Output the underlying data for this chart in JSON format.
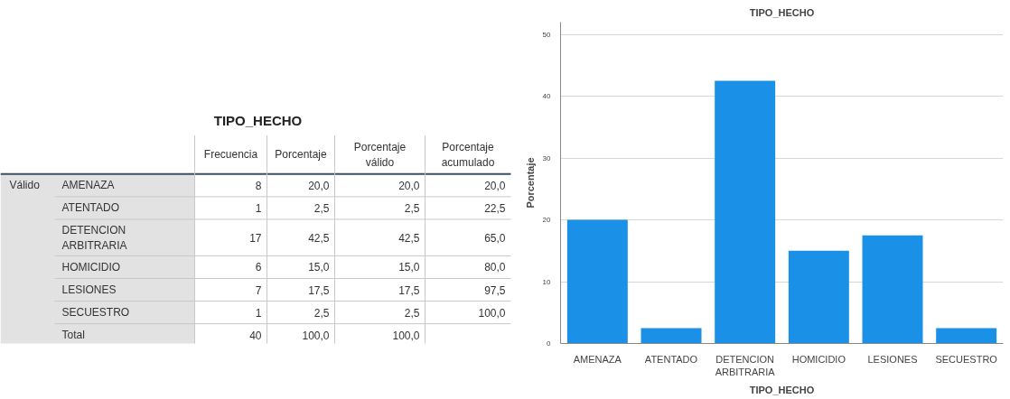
{
  "chart_data": [
    {
      "type": "other",
      "title": "TIPO_HECHO",
      "categories": [
        "Frecuencia",
        "Porcentaje",
        "Porcentaje\nválido",
        "Porcentaje\nacumulado"
      ],
      "y_categories": [
        "AMENAZA",
        "ATENTADO",
        "DETENCION\nARBITRARIA",
        "HOMICIDIO",
        "LESIONES",
        "SECUESTRO",
        "Total"
      ],
      "cell_labels": [
        [
          "8",
          "20,0",
          "20,0",
          "20,0"
        ],
        [
          "1",
          "2,5",
          "2,5",
          "22,5"
        ],
        [
          "17",
          "42,5",
          "42,5",
          "65,0"
        ],
        [
          "6",
          "15,0",
          "15,0",
          "80,0"
        ],
        [
          "7",
          "17,5",
          "17,5",
          "97,5"
        ],
        [
          "1",
          "2,5",
          "2,5",
          "100,0"
        ],
        [
          "40",
          "100,0",
          "100,0",
          null
        ]
      ],
      "annotations": [
        "Válido"
      ]
    },
    {
      "type": "bar",
      "title": "TIPO_HECHO",
      "xlabel": "TIPO_HECHO",
      "ylabel": "Porcentaje",
      "categories": [
        "AMENAZA",
        "ATENTADO",
        "DETENCION\nARBITRARIA",
        "HOMICIDIO",
        "LESIONES",
        "SECUESTRO"
      ],
      "values": [
        20,
        2.5,
        42.5,
        15,
        17.5,
        2.5
      ],
      "color": "#1a90e6",
      "ylim": [
        0,
        52
      ],
      "yticks": [
        0,
        10,
        20,
        30,
        40,
        50
      ],
      "grid": "y"
    }
  ]
}
